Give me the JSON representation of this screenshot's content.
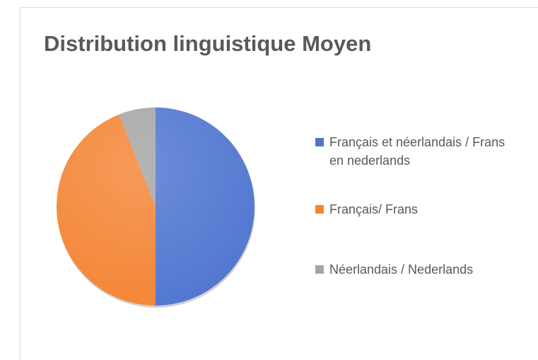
{
  "chart_data": {
    "type": "pie",
    "title": "Distribution linguistique Moyen",
    "categories": [
      "Français et néerlandais / Frans en nederlands",
      "Français/ Frans",
      "Néerlandais / Nederlands"
    ],
    "values": [
      50,
      44,
      6
    ],
    "colors": [
      "#4f75d0",
      "#f48434",
      "#a5a5a5"
    ],
    "legend": "right"
  }
}
